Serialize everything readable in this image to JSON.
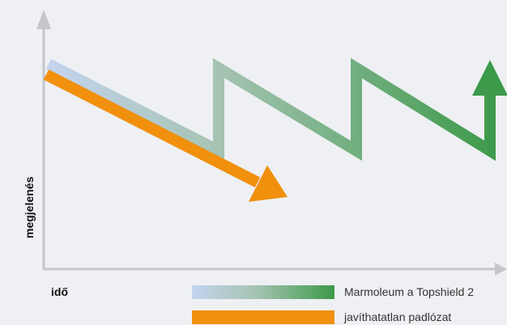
{
  "diagram": {
    "ylabel": "megjelenés",
    "xlabel": "idő"
  },
  "legend": {
    "items": [
      {
        "label": "Marmoleum a Topshield 2",
        "gradient": [
          "#c4d4ef",
          "#a5c3b2",
          "#3d9a4a"
        ]
      },
      {
        "label": "javíthatatlan padlózat",
        "color": "#f0900d"
      }
    ]
  },
  "colors": {
    "background": "#eef0f4",
    "axis": "#c4c6ca",
    "orange": "#f0900d",
    "green": "#3d9a4a",
    "light_blue": "#c4d4ef"
  }
}
